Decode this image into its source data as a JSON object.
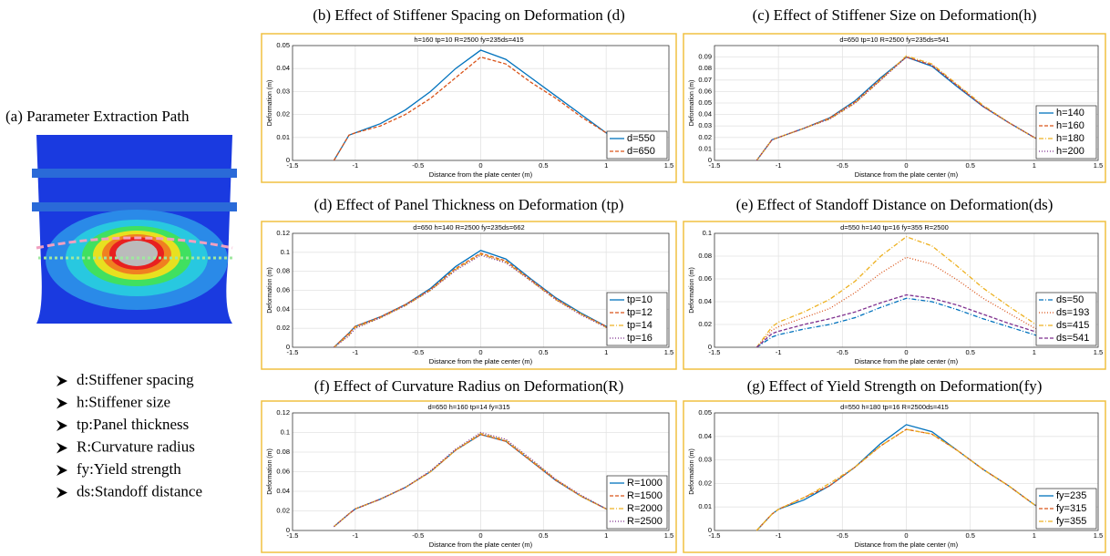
{
  "panel_a": {
    "title": "(a) Parameter Extraction Path",
    "items": [
      "d:Stiffener spacing",
      "h:Stiffener size",
      "tp:Panel thickness",
      "R:Curvature radius",
      "fy:Yield strength",
      "ds:Standoff distance"
    ]
  },
  "chart_data": [
    {
      "type": "line",
      "title": "(b) Effect of Stiffener Spacing on Deformation (d)",
      "subtitle": "h=160 tp=10 R=2500 fy=235ds=415",
      "xlabel": "Distance from the plate center (m)",
      "ylabel": "Deformation (m)",
      "x": [
        -1.17,
        -1.05,
        -1,
        -0.8,
        -0.6,
        -0.4,
        -0.2,
        0,
        0.2,
        0.4,
        0.6,
        0.8,
        1,
        1.1,
        1.2
      ],
      "series": [
        {
          "name": "d=550",
          "color": "#0072bd",
          "style": "solid",
          "values": [
            0,
            0.011,
            0.012,
            0.016,
            0.022,
            0.03,
            0.04,
            0.048,
            0.044,
            0.036,
            0.028,
            0.02,
            0.012,
            0.01,
            0.006
          ]
        },
        {
          "name": "d=650",
          "color": "#d95319",
          "style": "dashed",
          "values": [
            0,
            0.011,
            0.012,
            0.015,
            0.02,
            0.027,
            0.036,
            0.045,
            0.042,
            0.034,
            0.027,
            0.019,
            0.012,
            0.01,
            0.006
          ]
        }
      ],
      "xlim": [
        -1.5,
        1.5
      ],
      "ylim": [
        0,
        0.05
      ],
      "xticks": [
        -1.5,
        -1,
        -0.5,
        0,
        0.5,
        1,
        1.5
      ],
      "yticks": [
        0,
        0.01,
        0.02,
        0.03,
        0.04,
        0.05
      ],
      "grid": true,
      "legend": "lower right"
    },
    {
      "type": "line",
      "title": "(c) Effect of Stiffener Size on Deformation(h)",
      "subtitle": "d=650 tp=10 R=2500 fy=235ds=541",
      "xlabel": "Distance from the plate center (m)",
      "ylabel": "Deformation (m)",
      "x": [
        -1.17,
        -1.05,
        -1,
        -0.8,
        -0.6,
        -0.4,
        -0.2,
        0,
        0.2,
        0.4,
        0.6,
        0.8,
        1,
        1.1,
        1.2
      ],
      "series": [
        {
          "name": "h=140",
          "color": "#0072bd",
          "style": "solid",
          "values": [
            0,
            0.018,
            0.02,
            0.028,
            0.037,
            0.052,
            0.072,
            0.09,
            0.082,
            0.064,
            0.047,
            0.033,
            0.02,
            0.015,
            0.01
          ]
        },
        {
          "name": "h=160",
          "color": "#d95319",
          "style": "dashed",
          "values": [
            0,
            0.018,
            0.02,
            0.028,
            0.037,
            0.051,
            0.071,
            0.09,
            0.083,
            0.065,
            0.047,
            0.033,
            0.02,
            0.015,
            0.01
          ]
        },
        {
          "name": "h=180",
          "color": "#edb120",
          "style": "dashdot",
          "values": [
            0,
            0.018,
            0.02,
            0.028,
            0.036,
            0.05,
            0.07,
            0.091,
            0.084,
            0.066,
            0.048,
            0.033,
            0.02,
            0.015,
            0.01
          ]
        },
        {
          "name": "h=200",
          "color": "#7e2f8e",
          "style": "dotted",
          "values": [
            0,
            0.018,
            0.02,
            0.028,
            0.036,
            0.05,
            0.07,
            0.09,
            0.083,
            0.065,
            0.047,
            0.033,
            0.02,
            0.015,
            0.01
          ]
        }
      ],
      "xlim": [
        -1.5,
        1.5
      ],
      "ylim": [
        0,
        0.1
      ],
      "xticks": [
        -1.5,
        -1,
        -0.5,
        0,
        0.5,
        1,
        1.5
      ],
      "yticks": [
        0,
        0.01,
        0.02,
        0.03,
        0.04,
        0.05,
        0.06,
        0.07,
        0.08,
        0.09
      ],
      "grid": true,
      "legend": "lower right"
    },
    {
      "type": "line",
      "title": "(d) Effect of Panel Thickness on Deformation (tp)",
      "subtitle": "d=650 h=140 R=2500 fy=235ds=662",
      "xlabel": "Distance from the plate center (m)",
      "ylabel": "Deformation (m)",
      "x": [
        -1.17,
        -1.05,
        -1,
        -0.8,
        -0.6,
        -0.4,
        -0.2,
        0,
        0.2,
        0.4,
        0.6,
        0.8,
        1,
        1.1,
        1.2
      ],
      "series": [
        {
          "name": "tp=10",
          "color": "#0072bd",
          "style": "solid",
          "values": [
            0,
            0.015,
            0.022,
            0.032,
            0.045,
            0.062,
            0.085,
            0.102,
            0.093,
            0.072,
            0.052,
            0.036,
            0.022,
            0.016,
            0.01
          ]
        },
        {
          "name": "tp=12",
          "color": "#d95319",
          "style": "dashed",
          "values": [
            0,
            0.015,
            0.022,
            0.032,
            0.045,
            0.061,
            0.083,
            0.099,
            0.091,
            0.071,
            0.051,
            0.035,
            0.022,
            0.016,
            0.01
          ]
        },
        {
          "name": "tp=14",
          "color": "#edb120",
          "style": "dashdot",
          "values": [
            0,
            0.013,
            0.021,
            0.031,
            0.044,
            0.06,
            0.082,
            0.098,
            0.09,
            0.07,
            0.05,
            0.035,
            0.021,
            0.015,
            0.01
          ]
        },
        {
          "name": "tp=16",
          "color": "#7e2f8e",
          "style": "dotted",
          "values": [
            0,
            0.012,
            0.02,
            0.031,
            0.044,
            0.06,
            0.081,
            0.097,
            0.089,
            0.07,
            0.05,
            0.034,
            0.021,
            0.015,
            0.01
          ]
        }
      ],
      "xlim": [
        -1.5,
        1.5
      ],
      "ylim": [
        0,
        0.12
      ],
      "xticks": [
        -1.5,
        -1,
        -0.5,
        0,
        0.5,
        1,
        1.5
      ],
      "yticks": [
        0,
        0.02,
        0.04,
        0.06,
        0.08,
        0.1,
        0.12
      ],
      "grid": true,
      "legend": "lower right"
    },
    {
      "type": "line",
      "title": "(e) Effect of Standoff Distance on Deformation(ds)",
      "subtitle": "d=550 h=140 tp=16 fy=355 R=2500",
      "xlabel": "Distance from the plate center (m)",
      "ylabel": "Deformation (m)",
      "x": [
        -1.17,
        -1.05,
        -1,
        -0.8,
        -0.6,
        -0.4,
        -0.2,
        0,
        0.2,
        0.4,
        0.6,
        0.8,
        1,
        1.1,
        1.2
      ],
      "series": [
        {
          "name": "ds=50",
          "color": "#0072bd",
          "style": "dashdot",
          "values": [
            0,
            0.009,
            0.011,
            0.016,
            0.02,
            0.026,
            0.035,
            0.043,
            0.04,
            0.033,
            0.025,
            0.018,
            0.011,
            0.008,
            0.005
          ]
        },
        {
          "name": "ds=193",
          "color": "#d95319",
          "style": "dotted",
          "values": [
            0,
            0.015,
            0.018,
            0.026,
            0.034,
            0.048,
            0.065,
            0.079,
            0.073,
            0.059,
            0.043,
            0.03,
            0.017,
            0.013,
            0.009
          ]
        },
        {
          "name": "ds=415",
          "color": "#edb120",
          "style": "dashdot",
          "values": [
            0,
            0.018,
            0.022,
            0.031,
            0.042,
            0.058,
            0.08,
            0.097,
            0.089,
            0.071,
            0.052,
            0.036,
            0.021,
            0.016,
            0.011
          ]
        },
        {
          "name": "ds=541",
          "color": "#7e2f8e",
          "style": "dashed",
          "values": [
            0,
            0.012,
            0.014,
            0.02,
            0.025,
            0.031,
            0.039,
            0.046,
            0.043,
            0.037,
            0.029,
            0.021,
            0.014,
            0.011,
            0.008
          ]
        }
      ],
      "xlim": [
        -1.5,
        1.5
      ],
      "ylim": [
        0,
        0.1
      ],
      "xticks": [
        -1.5,
        -1,
        -0.5,
        0,
        0.5,
        1,
        1.5
      ],
      "yticks": [
        0,
        0.02,
        0.04,
        0.06,
        0.08,
        0.1
      ],
      "grid": true,
      "legend": "lower right"
    },
    {
      "type": "line",
      "title": "(f) Effect of Curvature Radius on Deformation(R)",
      "subtitle": "d=650 h=160 tp=14 fy=315",
      "xlabel": "Distance from the plate center (m)",
      "ylabel": "Deformation (m)",
      "x": [
        -1.17,
        -1.05,
        -1,
        -0.8,
        -0.6,
        -0.4,
        -0.2,
        0,
        0.2,
        0.4,
        0.6,
        0.8,
        1,
        1.1,
        1.2
      ],
      "series": [
        {
          "name": "R=1000",
          "color": "#0072bd",
          "style": "solid",
          "values": [
            0.004,
            0.017,
            0.022,
            0.032,
            0.044,
            0.06,
            0.082,
            0.098,
            0.091,
            0.071,
            0.051,
            0.035,
            0.022,
            0.016,
            0.011
          ]
        },
        {
          "name": "R=1500",
          "color": "#d95319",
          "style": "dashed",
          "values": [
            0.004,
            0.017,
            0.022,
            0.032,
            0.044,
            0.06,
            0.082,
            0.098,
            0.091,
            0.071,
            0.051,
            0.035,
            0.022,
            0.016,
            0.011
          ]
        },
        {
          "name": "R=2000",
          "color": "#edb120",
          "style": "dashdot",
          "values": [
            0.004,
            0.017,
            0.022,
            0.032,
            0.044,
            0.06,
            0.082,
            0.099,
            0.092,
            0.072,
            0.052,
            0.035,
            0.022,
            0.016,
            0.011
          ]
        },
        {
          "name": "R=2500",
          "color": "#7e2f8e",
          "style": "dotted",
          "values": [
            0.004,
            0.017,
            0.022,
            0.032,
            0.044,
            0.061,
            0.083,
            0.1,
            0.093,
            0.073,
            0.052,
            0.036,
            0.022,
            0.016,
            0.011
          ]
        }
      ],
      "xlim": [
        -1.5,
        1.5
      ],
      "ylim": [
        0,
        0.12
      ],
      "xticks": [
        -1.5,
        -1,
        -0.5,
        0,
        0.5,
        1,
        1.5
      ],
      "yticks": [
        0,
        0.02,
        0.04,
        0.06,
        0.08,
        0.1,
        0.12
      ],
      "grid": true,
      "legend": "lower right"
    },
    {
      "type": "line",
      "title": "(g) Effect of Yield Strength on Deformation(fy)",
      "subtitle": "d=550 h=180 tp=16 R=2500ds=415",
      "xlabel": "Distance from the plate center (m)",
      "ylabel": "Deformation (m)",
      "x": [
        -1.17,
        -1.05,
        -1,
        -0.8,
        -0.6,
        -0.4,
        -0.2,
        0,
        0.2,
        0.4,
        0.6,
        0.8,
        1,
        1.1,
        1.2
      ],
      "series": [
        {
          "name": "fy=235",
          "color": "#0072bd",
          "style": "solid",
          "values": [
            0,
            0.007,
            0.009,
            0.013,
            0.019,
            0.027,
            0.037,
            0.045,
            0.042,
            0.034,
            0.026,
            0.019,
            0.011,
            0.008,
            0.005
          ]
        },
        {
          "name": "fy=315",
          "color": "#d95319",
          "style": "dashed",
          "values": [
            0,
            0.007,
            0.009,
            0.014,
            0.019,
            0.027,
            0.036,
            0.043,
            0.041,
            0.034,
            0.026,
            0.019,
            0.011,
            0.008,
            0.005
          ]
        },
        {
          "name": "fy=355",
          "color": "#edb120",
          "style": "dashdot",
          "values": [
            0,
            0.007,
            0.009,
            0.014,
            0.02,
            0.027,
            0.036,
            0.043,
            0.041,
            0.034,
            0.026,
            0.019,
            0.011,
            0.008,
            0.005
          ]
        }
      ],
      "xlim": [
        -1.5,
        1.5
      ],
      "ylim": [
        0,
        0.05
      ],
      "xticks": [
        -1.5,
        -1,
        -0.5,
        0,
        0.5,
        1,
        1.5
      ],
      "yticks": [
        0,
        0.01,
        0.02,
        0.03,
        0.04,
        0.05
      ],
      "grid": true,
      "legend": "lower right"
    }
  ]
}
